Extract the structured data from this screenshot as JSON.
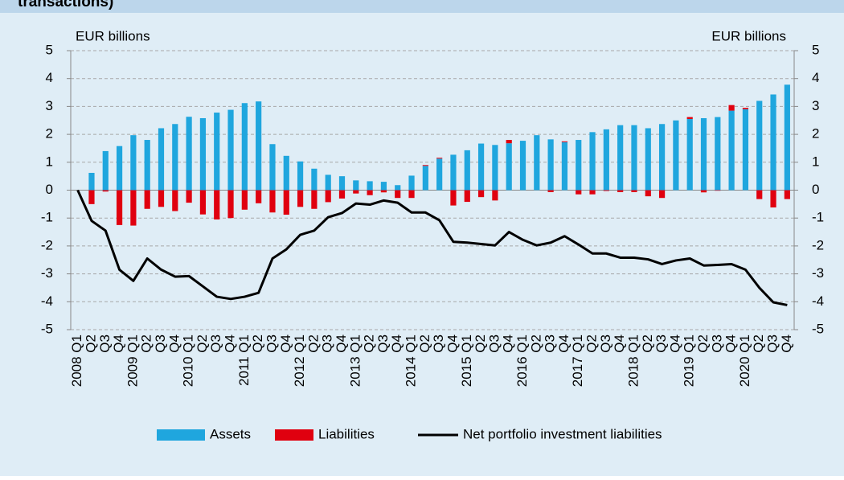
{
  "chart_data": {
    "type": "bar_line",
    "title": "transactions)",
    "y_label": "EUR billions",
    "y2_label": "EUR billions",
    "categories": [
      "2008 Q1",
      "Q2",
      "Q3",
      "Q4",
      "2009 Q1",
      "Q2",
      "Q3",
      "Q4",
      "2010 Q1",
      "Q2",
      "Q3",
      "Q4",
      "2011 Q1",
      "Q2",
      "Q3",
      "Q4",
      "2012 Q1",
      "Q2",
      "Q3",
      "Q4",
      "2013 Q1",
      "Q2",
      "Q3",
      "Q4",
      "2014 Q1",
      "Q2",
      "Q3",
      "Q4",
      "2015 Q1",
      "Q2",
      "Q3",
      "Q4",
      "2016 Q1",
      "Q2",
      "Q3",
      "Q4",
      "2017 Q1",
      "Q2",
      "Q3",
      "Q4",
      "2018 Q1",
      "Q2",
      "Q3",
      "Q4",
      "2019 Q1",
      "Q2",
      "Q3",
      "Q4",
      "2020 Q1",
      "Q2",
      "Q3",
      "Q4"
    ],
    "series": [
      {
        "name": "Assets",
        "color": "#1fa6de",
        "kind": "bar",
        "values": [
          0,
          0.62,
          1.4,
          1.58,
          1.97,
          1.8,
          2.22,
          2.37,
          2.63,
          2.58,
          2.78,
          2.88,
          3.12,
          3.18,
          1.65,
          1.23,
          1.03,
          0.77,
          0.55,
          0.5,
          0.35,
          0.32,
          0.3,
          0.18,
          0.52,
          0.87,
          1.13,
          1.27,
          1.43,
          1.67,
          1.62,
          1.68,
          1.77,
          1.97,
          1.82,
          1.72,
          1.8,
          2.08,
          2.18,
          2.33,
          2.33,
          2.22,
          2.37,
          2.5,
          2.55,
          2.58,
          2.62,
          2.85,
          2.9,
          3.2,
          3.43,
          3.78
        ]
      },
      {
        "name": "Liabilities",
        "color": "#e0000f",
        "kind": "bar",
        "values": [
          0,
          -0.5,
          -0.05,
          -1.25,
          -1.27,
          -0.67,
          -0.6,
          -0.75,
          -0.45,
          -0.87,
          -1.05,
          -1.0,
          -0.7,
          -0.47,
          -0.8,
          -0.88,
          -0.6,
          -0.67,
          -0.43,
          -0.3,
          -0.12,
          -0.18,
          -0.08,
          -0.28,
          -0.28,
          0.03,
          0.03,
          -0.55,
          -0.42,
          -0.25,
          -0.37,
          0.12,
          0,
          0,
          -0.07,
          0.03,
          -0.15,
          -0.15,
          -0.03,
          -0.07,
          -0.07,
          -0.22,
          -0.28,
          0,
          0.07,
          -0.08,
          -0.02,
          0.2,
          0.05,
          -0.32,
          -0.62,
          -0.32
        ]
      },
      {
        "name": "Net portfolio investment liabilities",
        "color": "#000000",
        "kind": "line",
        "values": [
          0,
          -1.1,
          -1.45,
          -2.85,
          -3.25,
          -2.45,
          -2.85,
          -3.1,
          -3.08,
          -3.45,
          -3.82,
          -3.9,
          -3.82,
          -3.68,
          -2.45,
          -2.12,
          -1.6,
          -1.45,
          -0.97,
          -0.82,
          -0.48,
          -0.52,
          -0.37,
          -0.45,
          -0.8,
          -0.8,
          -1.08,
          -1.85,
          -1.88,
          -1.93,
          -1.98,
          -1.5,
          -1.78,
          -1.98,
          -1.88,
          -1.65,
          -1.95,
          -2.27,
          -2.27,
          -2.42,
          -2.42,
          -2.48,
          -2.65,
          -2.52,
          -2.45,
          -2.7,
          -2.68,
          -2.65,
          -2.85,
          -3.5,
          -4.02,
          -4.12
        ]
      }
    ],
    "ylim": [
      -5,
      5
    ],
    "yticks": [
      -5,
      -4,
      -3,
      -2,
      -1,
      0,
      1,
      2,
      3,
      4,
      5
    ],
    "y2lim": [
      -5,
      5
    ],
    "y2ticks": [
      -5,
      -4,
      -3,
      -2,
      -1,
      0,
      1,
      2,
      3,
      4,
      5
    ],
    "grid": true,
    "legend": "bottom"
  }
}
